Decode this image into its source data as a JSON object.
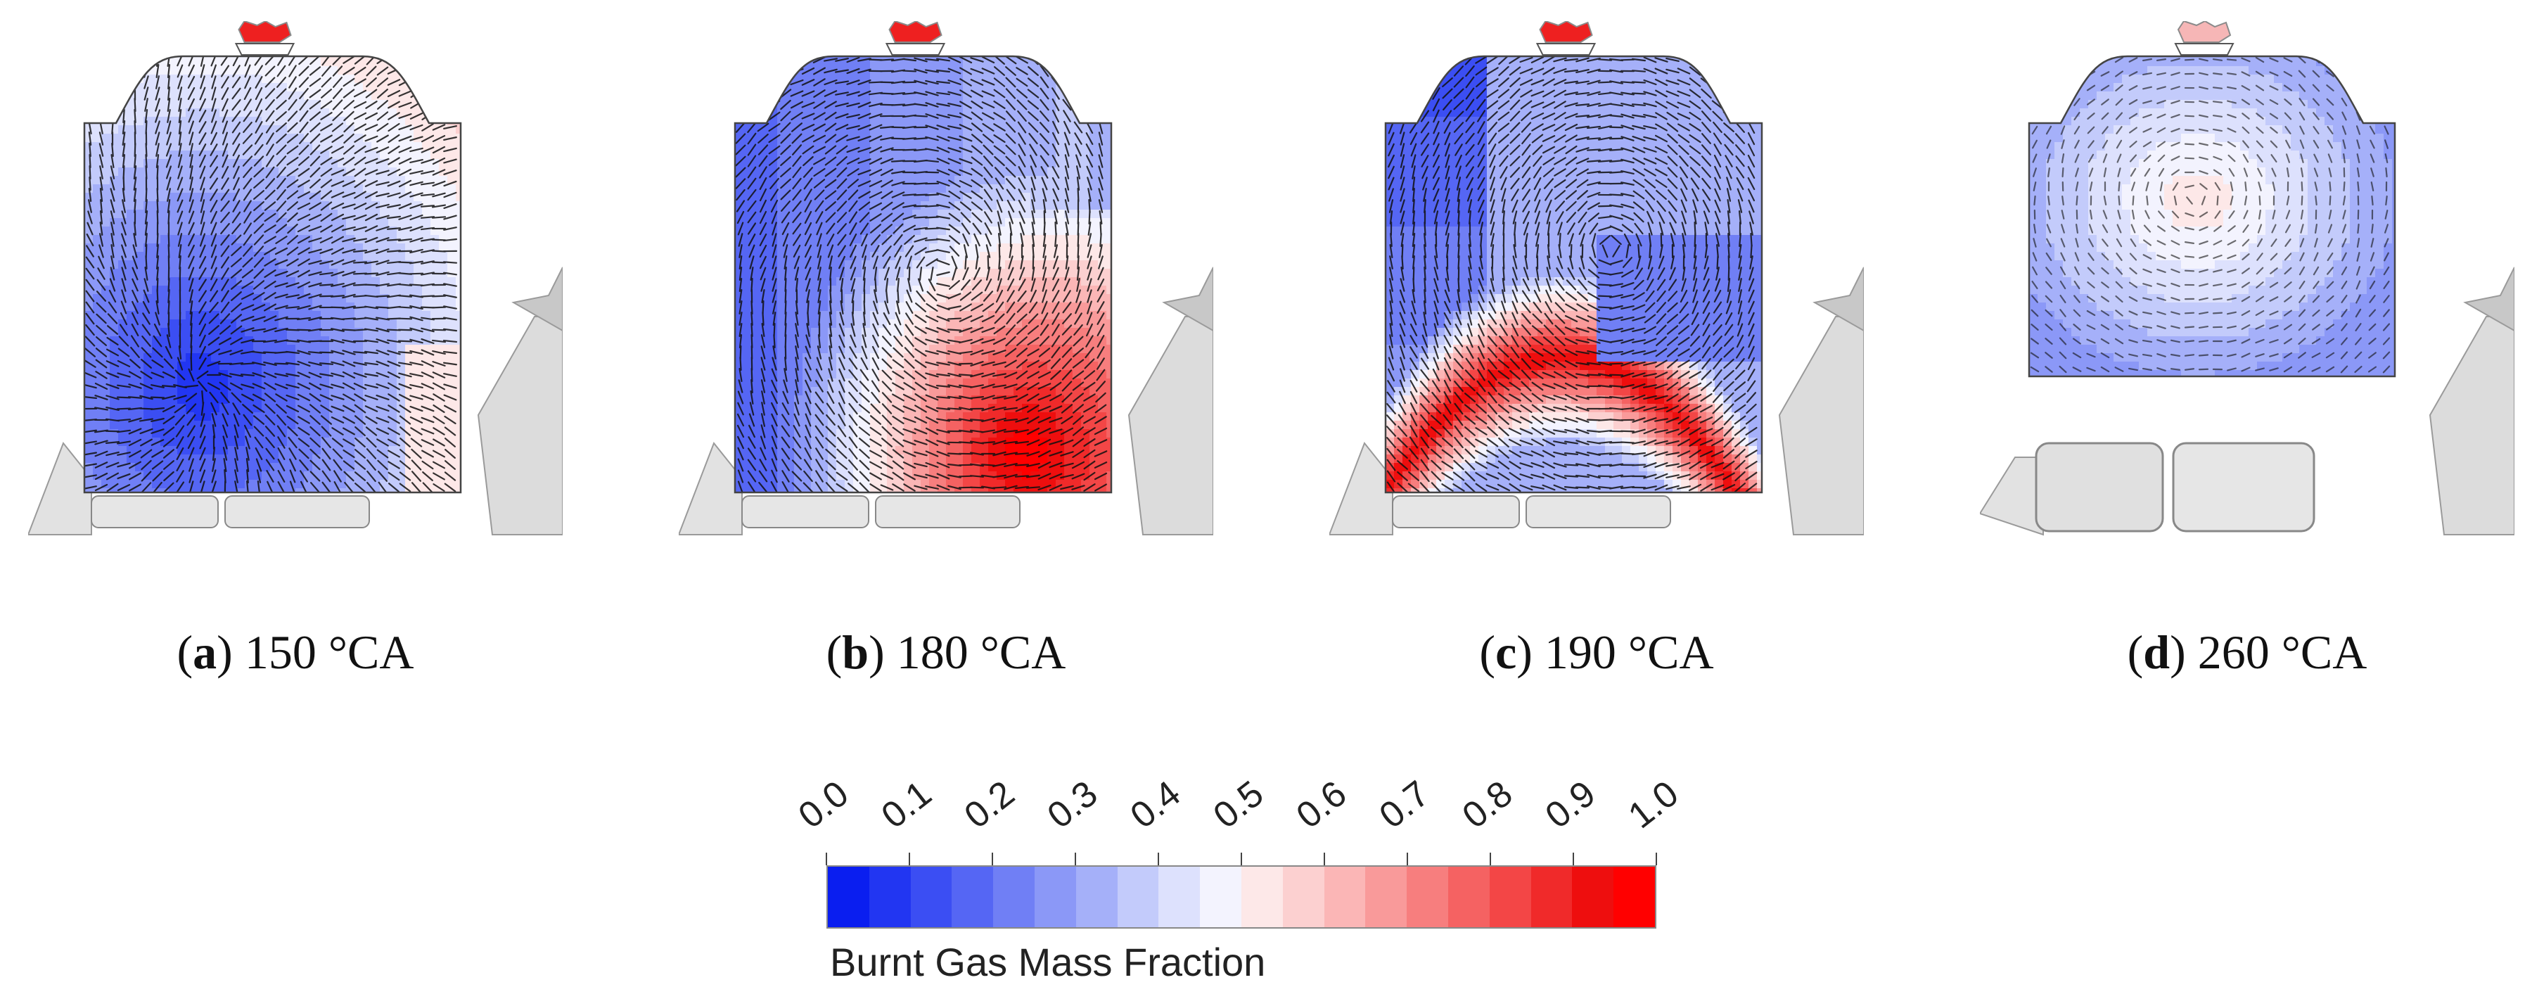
{
  "panels": [
    {
      "letter": "a",
      "label": "150 °CA",
      "mode": "a"
    },
    {
      "letter": "b",
      "label": "180 °CA",
      "mode": "b"
    },
    {
      "letter": "c",
      "label": "190 °CA",
      "mode": "c"
    },
    {
      "letter": "d",
      "label": "260 °CA",
      "mode": "d"
    }
  ],
  "colorbar": {
    "title": "Burnt Gas Mass Fraction",
    "ticks": [
      "0.0",
      "0.1",
      "0.2",
      "0.3",
      "0.4",
      "0.5",
      "0.6",
      "0.7",
      "0.8",
      "0.9",
      "1.0"
    ],
    "colors": [
      "#0a1ef0",
      "#2236f2",
      "#3b4ef3",
      "#5566f4",
      "#707ff5",
      "#8b98f7",
      "#a5b0f9",
      "#c3cbfb",
      "#dde1fd",
      "#f3f3fe",
      "#fde8e8",
      "#fcd0d0",
      "#fbb6b6",
      "#f99a9a",
      "#f77e7e",
      "#f56262",
      "#f34646",
      "#f02a2a",
      "#ee0e0e",
      "#ff0000"
    ]
  }
}
